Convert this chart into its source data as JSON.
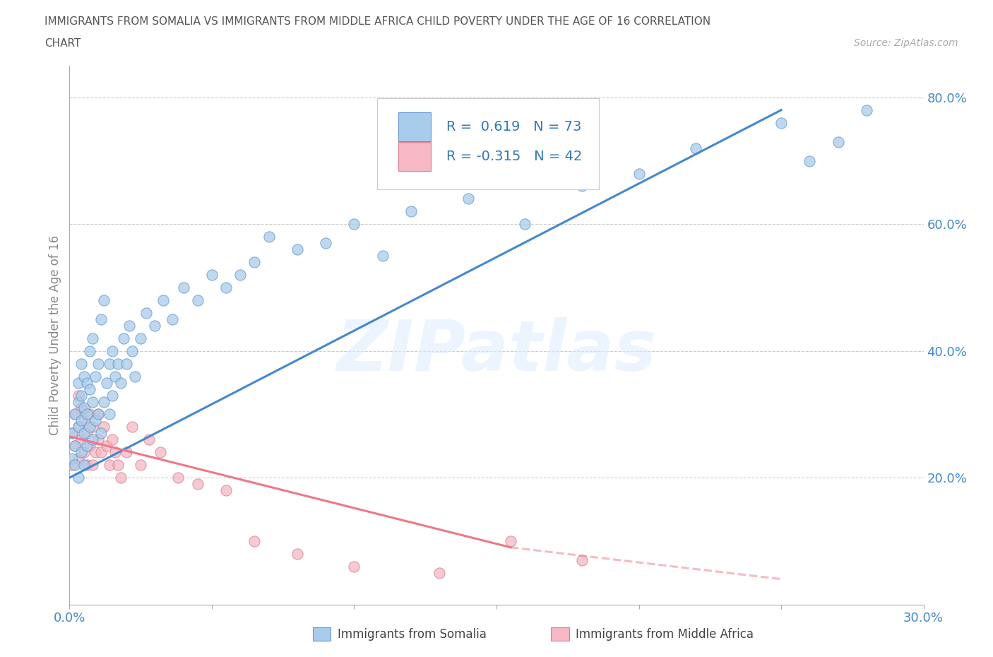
{
  "title_line1": "IMMIGRANTS FROM SOMALIA VS IMMIGRANTS FROM MIDDLE AFRICA CHILD POVERTY UNDER THE AGE OF 16 CORRELATION",
  "title_line2": "CHART",
  "source_text": "Source: ZipAtlas.com",
  "ylabel": "Child Poverty Under the Age of 16",
  "xlim": [
    0.0,
    0.3
  ],
  "ylim": [
    0.0,
    0.85
  ],
  "xtick_positions": [
    0.0,
    0.05,
    0.1,
    0.15,
    0.2,
    0.25,
    0.3
  ],
  "xtick_labels": [
    "0.0%",
    "",
    "",
    "",
    "",
    "",
    "30.0%"
  ],
  "ytick_positions": [
    0.2,
    0.4,
    0.6,
    0.8
  ],
  "ytick_labels": [
    "20.0%",
    "40.0%",
    "60.0%",
    "80.0%"
  ],
  "somalia_color": "#A8CCEC",
  "somalia_edge": "#6699CC",
  "middle_africa_color": "#F5B8C4",
  "middle_africa_edge": "#D98090",
  "trend_somalia_color": "#4488CC",
  "trend_middle_africa_color": "#EE7788",
  "R_somalia": 0.619,
  "N_somalia": 73,
  "R_middle_africa": -0.315,
  "N_middle_africa": 42,
  "legend_label_somalia": "Immigrants from Somalia",
  "legend_label_middle_africa": "Immigrants from Middle Africa",
  "watermark": "ZIPatlas",
  "background_color": "#ffffff",
  "grid_color": "#cccccc",
  "title_color": "#555555",
  "Somalia_x": [
    0.001,
    0.001,
    0.002,
    0.002,
    0.002,
    0.003,
    0.003,
    0.003,
    0.003,
    0.004,
    0.004,
    0.004,
    0.004,
    0.005,
    0.005,
    0.005,
    0.005,
    0.006,
    0.006,
    0.006,
    0.007,
    0.007,
    0.007,
    0.008,
    0.008,
    0.008,
    0.009,
    0.009,
    0.01,
    0.01,
    0.011,
    0.011,
    0.012,
    0.012,
    0.013,
    0.014,
    0.014,
    0.015,
    0.015,
    0.016,
    0.017,
    0.018,
    0.019,
    0.02,
    0.021,
    0.022,
    0.023,
    0.025,
    0.027,
    0.03,
    0.033,
    0.036,
    0.04,
    0.045,
    0.05,
    0.055,
    0.06,
    0.065,
    0.07,
    0.08,
    0.09,
    0.1,
    0.11,
    0.12,
    0.14,
    0.16,
    0.18,
    0.2,
    0.22,
    0.25,
    0.26,
    0.27,
    0.28
  ],
  "Somalia_y": [
    0.23,
    0.27,
    0.22,
    0.3,
    0.25,
    0.2,
    0.28,
    0.32,
    0.35,
    0.24,
    0.29,
    0.33,
    0.38,
    0.22,
    0.27,
    0.31,
    0.36,
    0.25,
    0.3,
    0.35,
    0.28,
    0.34,
    0.4,
    0.26,
    0.32,
    0.42,
    0.29,
    0.36,
    0.3,
    0.38,
    0.27,
    0.45,
    0.32,
    0.48,
    0.35,
    0.3,
    0.38,
    0.33,
    0.4,
    0.36,
    0.38,
    0.35,
    0.42,
    0.38,
    0.44,
    0.4,
    0.36,
    0.42,
    0.46,
    0.44,
    0.48,
    0.45,
    0.5,
    0.48,
    0.52,
    0.5,
    0.52,
    0.54,
    0.58,
    0.56,
    0.57,
    0.6,
    0.55,
    0.62,
    0.64,
    0.6,
    0.66,
    0.68,
    0.72,
    0.76,
    0.7,
    0.73,
    0.78
  ],
  "MiddleAfrica_x": [
    0.001,
    0.001,
    0.002,
    0.002,
    0.003,
    0.003,
    0.003,
    0.004,
    0.004,
    0.005,
    0.005,
    0.006,
    0.006,
    0.007,
    0.007,
    0.008,
    0.008,
    0.009,
    0.01,
    0.01,
    0.011,
    0.012,
    0.013,
    0.014,
    0.015,
    0.016,
    0.017,
    0.018,
    0.02,
    0.022,
    0.025,
    0.028,
    0.032,
    0.038,
    0.045,
    0.055,
    0.065,
    0.08,
    0.1,
    0.13,
    0.155,
    0.18
  ],
  "MiddleAfrica_y": [
    0.22,
    0.27,
    0.25,
    0.3,
    0.23,
    0.28,
    0.33,
    0.26,
    0.31,
    0.24,
    0.29,
    0.22,
    0.27,
    0.25,
    0.3,
    0.22,
    0.28,
    0.24,
    0.26,
    0.3,
    0.24,
    0.28,
    0.25,
    0.22,
    0.26,
    0.24,
    0.22,
    0.2,
    0.24,
    0.28,
    0.22,
    0.26,
    0.24,
    0.2,
    0.19,
    0.18,
    0.1,
    0.08,
    0.06,
    0.05,
    0.1,
    0.07
  ],
  "trend_somalia_x0": 0.0,
  "trend_somalia_y0": 0.2,
  "trend_somalia_x1": 0.25,
  "trend_somalia_y1": 0.78,
  "trend_middle_x0": 0.0,
  "trend_middle_y0": 0.265,
  "trend_middle_x1": 0.155,
  "trend_middle_y1": 0.09,
  "trend_middle_dash_x0": 0.155,
  "trend_middle_dash_y0": 0.09,
  "trend_middle_dash_x1": 0.25,
  "trend_middle_dash_y1": 0.04
}
